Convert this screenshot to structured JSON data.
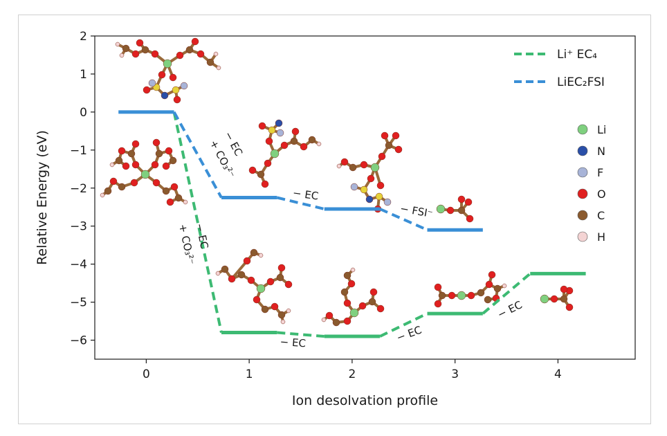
{
  "chart_data": {
    "type": "line",
    "xlabel": "Ion desolvation profile",
    "ylabel": "Relative Energy (eV)",
    "xlim": [
      -0.5,
      4.75
    ],
    "ylim": [
      -6.5,
      2.0
    ],
    "xticks": [
      "0",
      "1",
      "2",
      "3",
      "4"
    ],
    "yticks": [
      "2",
      "1",
      "0",
      "−1",
      "−2",
      "−3",
      "−4",
      "−5",
      "−6"
    ],
    "grid": false,
    "legend_position": "top-right",
    "colors": {
      "green": "#3dba73",
      "blue": "#3a8fd6"
    },
    "series": [
      {
        "name": "Li⁺ EC₄",
        "color": "#3dba73",
        "levels": [
          {
            "x": 1,
            "y": -5.8
          },
          {
            "x": 2,
            "y": -5.9
          },
          {
            "x": 3,
            "y": -5.3
          },
          {
            "x": 4,
            "y": -4.25
          }
        ],
        "start_from": {
          "x": 0,
          "y": 0.0
        }
      },
      {
        "name": "LiEC₂FSI",
        "color": "#3a8fd6",
        "levels": [
          {
            "x": 0,
            "y": 0.0
          },
          {
            "x": 1,
            "y": -2.25
          },
          {
            "x": 2,
            "y": -2.55
          },
          {
            "x": 3,
            "y": -3.1
          }
        ]
      }
    ],
    "annotations": {
      "blue_0_1_minus": "− EC",
      "blue_0_1_plus": "+ CO₃²⁻",
      "blue_1_2": "− EC",
      "blue_2_3": "− FSI⁻",
      "green_0_1_minus": "− EC",
      "green_0_1_plus": "+ CO₃²⁻",
      "green_1_2": "− EC",
      "green_2_3": "− EC",
      "green_3_4": "− EC"
    },
    "element_legend": [
      {
        "label": "Li",
        "color": "#7fd07f"
      },
      {
        "label": "N",
        "color": "#2a4fa8"
      },
      {
        "label": "F",
        "color": "#a8b4d8"
      },
      {
        "label": "O",
        "color": "#e02020"
      },
      {
        "label": "C",
        "color": "#8a5a2e"
      },
      {
        "label": "H",
        "color": "#f4d4d4"
      }
    ]
  }
}
